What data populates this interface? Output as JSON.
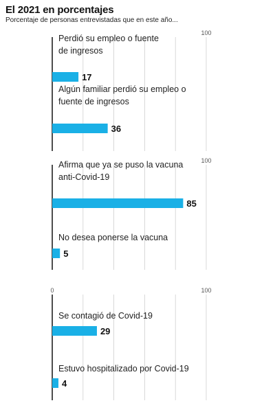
{
  "title": "El 2021 en porcentajes",
  "subtitle": "Porcentaje de personas entrevistadas que en este año...",
  "colors": {
    "bar": "#1ab0e6",
    "axis": "#111111",
    "grid": "#cfcfcf"
  },
  "chart_data": [
    {
      "type": "bar",
      "orientation": "horizontal",
      "xlim": [
        0,
        100
      ],
      "tick_labels": [
        "",
        "100"
      ],
      "grid": true,
      "categories": [
        [
          "Perdió su empleo o fuente",
          "de ingresos"
        ],
        [
          "Algún familiar perdió su empleo o",
          "fuente de ingresos"
        ]
      ],
      "values": [
        17,
        36
      ]
    },
    {
      "type": "bar",
      "orientation": "horizontal",
      "xlim": [
        0,
        100
      ],
      "tick_labels": [
        "",
        "100"
      ],
      "grid": true,
      "categories": [
        [
          "Afirma que ya se puso la vacuna",
          "anti-Covid-19"
        ],
        [
          "No desea ponerse la vacuna"
        ]
      ],
      "values": [
        85,
        5
      ]
    },
    {
      "type": "bar",
      "orientation": "horizontal",
      "xlim": [
        0,
        100
      ],
      "tick_labels": [
        "0",
        "100"
      ],
      "grid": true,
      "categories": [
        [
          "Se contagió de Covid-19"
        ],
        [
          "Estuvo hospitalizado por Covid-19"
        ]
      ],
      "values": [
        29,
        4
      ]
    }
  ]
}
